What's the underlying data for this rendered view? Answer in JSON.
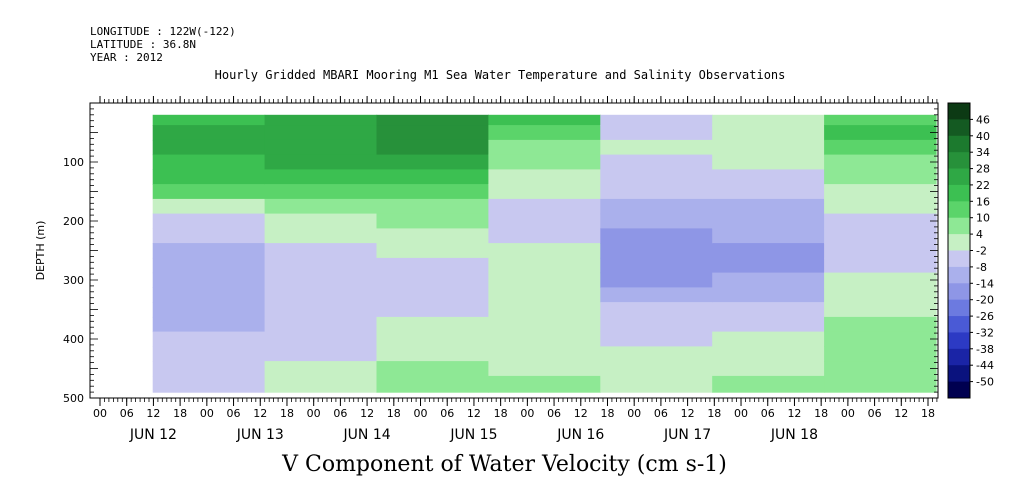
{
  "header": {
    "longitude": "LONGITUDE : 122W(-122)",
    "latitude": "LATITUDE : 36.8N",
    "year": "YEAR : 2012"
  },
  "chart_data": {
    "type": "heatmap",
    "title": "Hourly Gridded MBARI Mooring M1 Sea Water Temperature and Salinity Observations",
    "xlabel": "V Component of Water Velocity (cm s-1)",
    "ylabel": "DEPTH (m)",
    "ylim": [
      500,
      0
    ],
    "y_ticks": [
      100,
      200,
      300,
      400,
      500
    ],
    "x_hour_ticks": [
      "00",
      "06",
      "12",
      "18",
      "00",
      "06",
      "12",
      "18",
      "00",
      "06",
      "12",
      "18",
      "00",
      "06",
      "12",
      "18",
      "00",
      "06",
      "12",
      "18",
      "00",
      "06",
      "12",
      "18",
      "00",
      "06",
      "12",
      "18",
      "00",
      "06",
      "12",
      "18"
    ],
    "x_day_labels": [
      "JUN 12",
      "JUN 13",
      "JUN 14",
      "JUN 15",
      "JUN 16",
      "JUN 17",
      "JUN 18"
    ],
    "colorbar_labels": [
      "46",
      "40",
      "34",
      "28",
      "22",
      "16",
      "10",
      "4",
      "-2",
      "-8",
      "-14",
      "-20",
      "-26",
      "-32",
      "-38",
      "-44",
      "-50"
    ],
    "colorbar_colors": [
      "#0c3a14",
      "#145a22",
      "#1c7a2e",
      "#27913a",
      "#2fa845",
      "#3cc052",
      "#5bd46a",
      "#8ee895",
      "#c6f0c4",
      "#c8c8f0",
      "#aab0ec",
      "#8e96e6",
      "#6c7ae0",
      "#4a5ad6",
      "#2c3ac4",
      "#1a24a6",
      "#0a127e",
      "#000050"
    ],
    "grid": false,
    "legend": "right colorbar",
    "depth_bins": [
      25,
      50,
      75,
      100,
      125,
      150,
      175,
      200,
      225,
      250,
      275,
      300,
      325,
      350,
      375,
      400,
      425,
      450,
      475
    ],
    "daily_v_profile": [
      {
        "day": "JUN 12",
        "v": [
          18,
          20,
          20,
          18,
          14,
          8,
          0,
          -6,
          -10,
          -12,
          -14,
          -14,
          -12,
          -12,
          -12,
          -10,
          -10,
          -8,
          -6
        ]
      },
      {
        "day": "JUN 13",
        "v": [
          20,
          22,
          22,
          20,
          16,
          12,
          6,
          0,
          -4,
          -8,
          -10,
          -10,
          -10,
          -8,
          -6,
          -6,
          -6,
          -4,
          -4
        ]
      },
      {
        "day": "JUN 14",
        "v": [
          28,
          30,
          28,
          22,
          16,
          10,
          6,
          2,
          0,
          -4,
          -6,
          -8,
          -8,
          -6,
          -4,
          -2,
          0,
          2,
          4
        ]
      },
      {
        "day": "JUN 15",
        "v": [
          14,
          12,
          6,
          2,
          -2,
          -4,
          -6,
          -8,
          -6,
          -4,
          -2,
          0,
          -2,
          -4,
          -4,
          -2,
          -2,
          0,
          2
        ]
      },
      {
        "day": "JUN 16",
        "v": [
          -6,
          -6,
          -4,
          -6,
          -8,
          -10,
          -12,
          -14,
          -18,
          -20,
          -20,
          -18,
          -14,
          -10,
          -8,
          -6,
          -4,
          -2,
          0
        ]
      },
      {
        "day": "JUN 17",
        "v": [
          -4,
          -2,
          0,
          -2,
          -6,
          -8,
          -12,
          -14,
          -16,
          -18,
          -18,
          -16,
          -12,
          -10,
          -6,
          -4,
          -2,
          0,
          2
        ]
      },
      {
        "day": "JUN 18",
        "v": [
          12,
          14,
          10,
          6,
          2,
          -2,
          -4,
          -6,
          -8,
          -8,
          -6,
          -4,
          -2,
          0,
          2,
          4,
          4,
          4,
          6
        ]
      }
    ]
  }
}
